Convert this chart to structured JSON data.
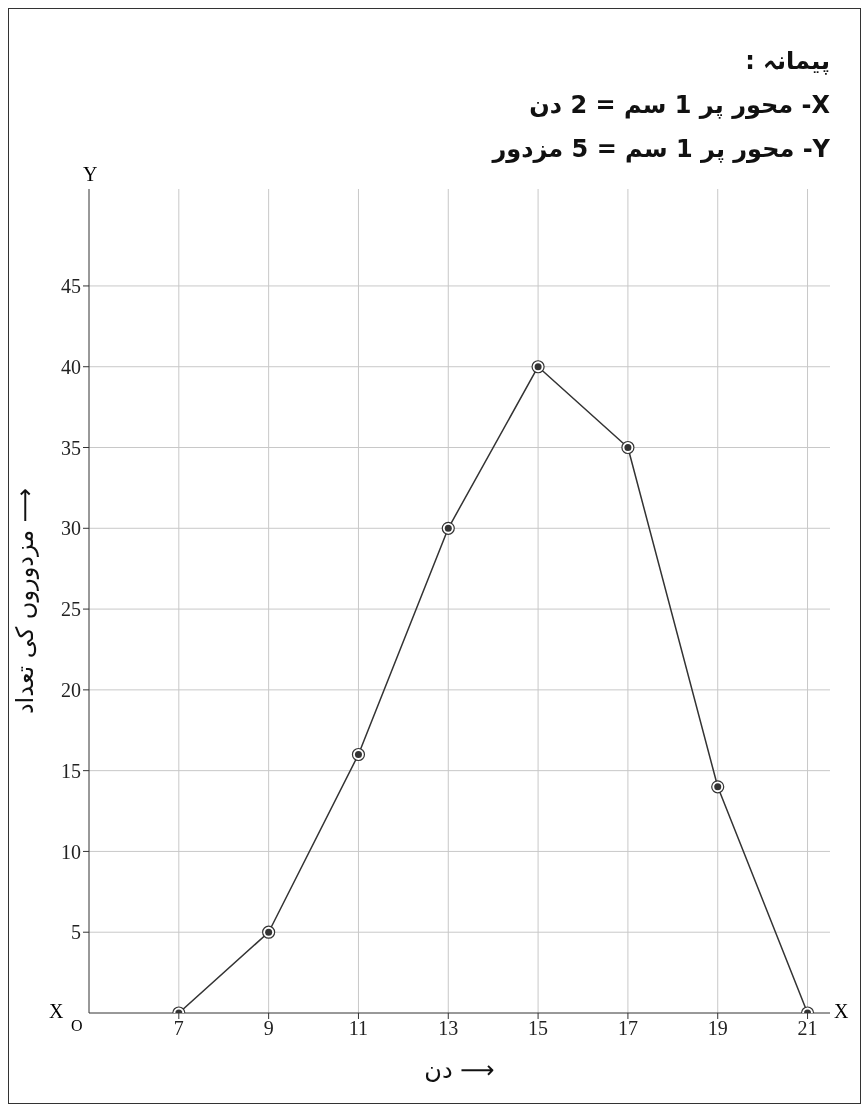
{
  "chart_data": {
    "type": "line",
    "xlabel": "دن ⟶",
    "ylabel": "مزدوروں کی تعداد ⟶",
    "annotations": [
      "پیمانہ :",
      "X- محور پر 1 سم = 2 دن",
      "Y- محور پر 1 سم = 5 مزدور",
      "X",
      "X",
      "Y",
      "O"
    ],
    "x": [
      7,
      9,
      11,
      13,
      15,
      17,
      19,
      21
    ],
    "series": [
      {
        "color": "#333333",
        "values": [
          0,
          5,
          16,
          30,
          40,
          35,
          14,
          0
        ]
      }
    ],
    "xlim": [
      5,
      21.5
    ],
    "xticks": [
      7,
      9,
      11,
      13,
      15,
      17,
      19,
      21
    ],
    "ylim": [
      0,
      51
    ],
    "yticks": [
      5,
      10,
      15,
      20,
      25,
      30,
      35,
      40,
      45
    ],
    "grid": true,
    "marker": "circle",
    "line_style": "solid"
  }
}
